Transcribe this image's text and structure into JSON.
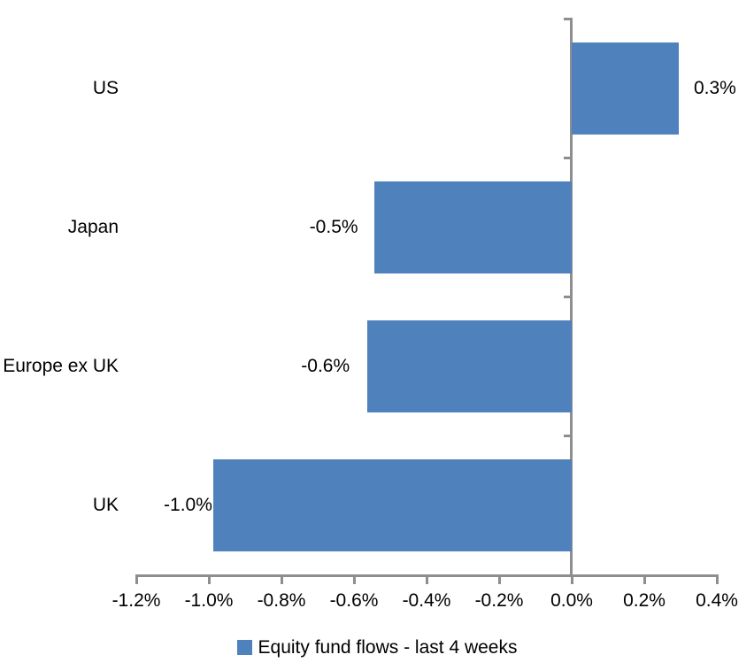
{
  "chart_data": {
    "type": "bar",
    "orientation": "horizontal",
    "title": "",
    "xlabel": "",
    "ylabel": "",
    "categories": [
      "US",
      "Japan",
      "Europe ex UK",
      "UK"
    ],
    "series": [
      {
        "name": "Equity fund flows - last 4 weeks",
        "values": [
          0.3,
          -0.5,
          -0.6,
          -1.0
        ],
        "data_labels": [
          "0.3%",
          "-0.5%",
          "-0.6%",
          "-1.0%"
        ],
        "drawn_values": [
          0.295,
          -0.545,
          -0.563,
          -0.988
        ],
        "color": "#4F81BD"
      }
    ],
    "xlim": [
      -1.2,
      0.4
    ],
    "x_tick_step": 0.2,
    "x_tick_labels": [
      "-1.2%",
      "-1.0%",
      "-0.8%",
      "-0.6%",
      "-0.4%",
      "-0.2%",
      "0.0%",
      "0.2%",
      "0.4%"
    ],
    "grid": false,
    "axis_color": "#8E8E8E",
    "background": "#FFFFFF",
    "legend": {
      "position": "bottom",
      "label": "Equity fund flows - last 4 weeks",
      "swatch_color": "#4F81BD"
    }
  }
}
